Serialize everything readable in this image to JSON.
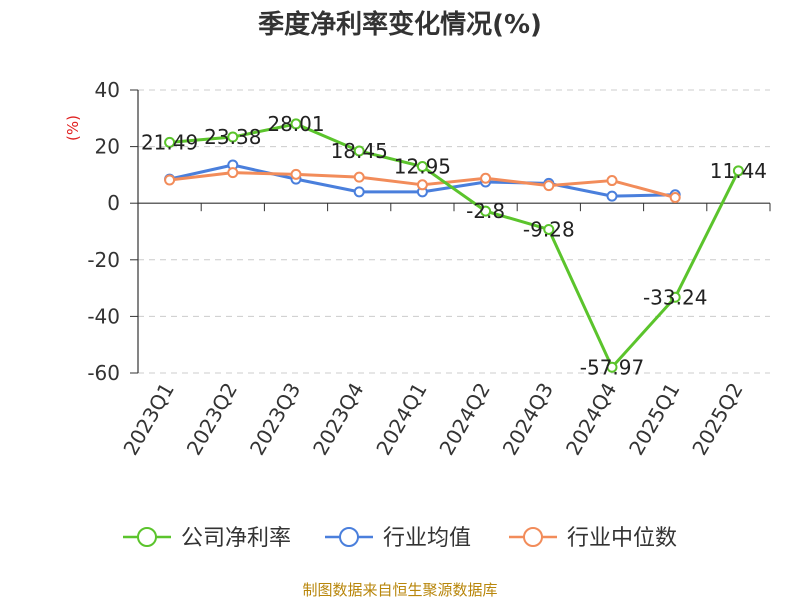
{
  "chart_data": {
    "type": "line",
    "title": "季度净利率变化情况(%)",
    "ylabel": "(%)",
    "ylim": [
      -60,
      40
    ],
    "yticks": [
      40,
      20,
      0,
      -20,
      -40,
      -60
    ],
    "grid": true,
    "legend_position": "bottom",
    "categories": [
      "2023Q1",
      "2023Q2",
      "2023Q3",
      "2023Q4",
      "2024Q1",
      "2024Q2",
      "2024Q3",
      "2024Q4",
      "2025Q1",
      "2025Q2"
    ],
    "series": [
      {
        "name": "公司净利率",
        "color": "#5bc42c",
        "values": [
          21.49,
          23.38,
          28.01,
          18.45,
          12.95,
          -2.8,
          -9.28,
          -57.97,
          -33.24,
          11.44
        ],
        "labels": [
          "21.49",
          "23.38",
          "28.01",
          "18.45",
          "12.95",
          "-2.8",
          "-9.28",
          "-57.97",
          "-33.24",
          "11.44"
        ]
      },
      {
        "name": "行业均值",
        "color": "#4a7fdc",
        "values": [
          8.5,
          13.5,
          8.5,
          4.0,
          4.0,
          7.5,
          7.0,
          2.5,
          3.0,
          null
        ]
      },
      {
        "name": "行业中位数",
        "color": "#f28c5a",
        "values": [
          8.2,
          10.8,
          10.2,
          9.2,
          6.5,
          8.8,
          6.2,
          8.0,
          2.0,
          null
        ]
      }
    ]
  },
  "source": "制图数据来自恒生聚源数据库"
}
